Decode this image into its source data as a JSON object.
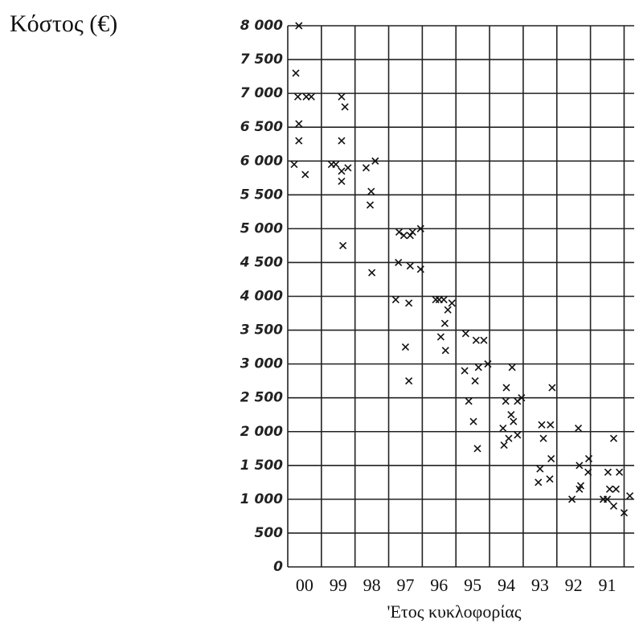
{
  "chart_data": {
    "type": "scatter",
    "y_label": "Κόστος (€)",
    "x_label": "'Ετος κυκλοφορίας",
    "xlim": [
      0,
      10.3
    ],
    "xticks": [
      {
        "value": 0.5,
        "label": "00"
      },
      {
        "value": 1.5,
        "label": "99"
      },
      {
        "value": 2.5,
        "label": "98"
      },
      {
        "value": 3.5,
        "label": "97"
      },
      {
        "value": 4.5,
        "label": "96"
      },
      {
        "value": 5.5,
        "label": "95"
      },
      {
        "value": 6.5,
        "label": "94"
      },
      {
        "value": 7.5,
        "label": "93"
      },
      {
        "value": 8.5,
        "label": "92"
      },
      {
        "value": 9.5,
        "label": "91"
      }
    ],
    "ylim": [
      0,
      8000
    ],
    "yticks": [
      0,
      500,
      {
        "value": 1000,
        "label": "1 000"
      },
      {
        "value": 1500,
        "label": "1 500"
      },
      {
        "value": 2000,
        "label": "2 000"
      },
      {
        "value": 2500,
        "label": "2 500"
      },
      {
        "value": 3000,
        "label": "3 000"
      },
      {
        "value": 3500,
        "label": "3 500"
      },
      {
        "value": 4000,
        "label": "4 000"
      },
      {
        "value": 4500,
        "label": "4 500"
      },
      {
        "value": 5000,
        "label": "5 000"
      },
      {
        "value": 5500,
        "label": "5 500"
      },
      {
        "value": 6000,
        "label": "6 000"
      },
      {
        "value": 6500,
        "label": "6 500"
      },
      {
        "value": 7000,
        "label": "7 000"
      },
      {
        "value": 7500,
        "label": "7 500"
      },
      {
        "value": 8000,
        "label": "8 000"
      }
    ],
    "grid": true,
    "color": "#111111",
    "x": [
      0.33,
      0.24,
      0.3,
      0.55,
      0.7,
      0.33,
      0.33,
      0.19,
      0.52,
      1.6,
      1.7,
      1.6,
      1.3,
      1.43,
      1.6,
      1.79,
      1.6,
      1.64,
      2.33,
      2.6,
      2.48,
      2.45,
      2.5,
      3.31,
      3.45,
      3.64,
      3.71,
      3.95,
      3.29,
      3.64,
      3.95,
      3.21,
      3.6,
      3.5,
      3.6,
      4.4,
      4.5,
      4.64,
      4.88,
      4.76,
      4.67,
      4.55,
      4.69,
      5.29,
      5.6,
      5.83,
      5.26,
      5.57,
      5.67,
      5.95,
      5.38,
      5.52,
      5.64,
      6.67,
      6.5,
      6.48,
      6.64,
      6.71,
      6.83,
      6.95,
      6.4,
      6.43,
      6.57,
      6.83,
      7.86,
      7.55,
      7.81,
      7.6,
      7.5,
      7.83,
      7.45,
      7.79,
      8.64,
      8.67,
      8.95,
      8.93,
      8.71,
      8.67,
      8.45,
      9.69,
      9.52,
      9.86,
      9.38,
      9.57,
      9.76,
      9.69,
      10.0,
      10.17,
      9.5
    ],
    "values": [
      8000,
      7300,
      6950,
      6950,
      6950,
      6550,
      6300,
      5950,
      5800,
      6950,
      6800,
      6300,
      5950,
      5950,
      5850,
      5900,
      5700,
      4750,
      5900,
      6000,
      5550,
      5350,
      4350,
      4950,
      4900,
      4900,
      4950,
      5000,
      4500,
      4450,
      4400,
      3950,
      3900,
      3250,
      2750,
      3950,
      3950,
      3950,
      3900,
      3800,
      3600,
      3400,
      3200,
      3450,
      3350,
      3350,
      2900,
      2750,
      2950,
      3000,
      2450,
      2150,
      1750,
      2950,
      2650,
      2450,
      2250,
      2150,
      2450,
      2500,
      2050,
      1800,
      1900,
      1950,
      2650,
      2100,
      2100,
      1900,
      1450,
      1600,
      1250,
      1300,
      2050,
      1500,
      1600,
      1400,
      1200,
      1150,
      1000,
      1900,
      1400,
      1400,
      1000,
      1150,
      1150,
      900,
      800,
      1050,
      1000
    ]
  }
}
